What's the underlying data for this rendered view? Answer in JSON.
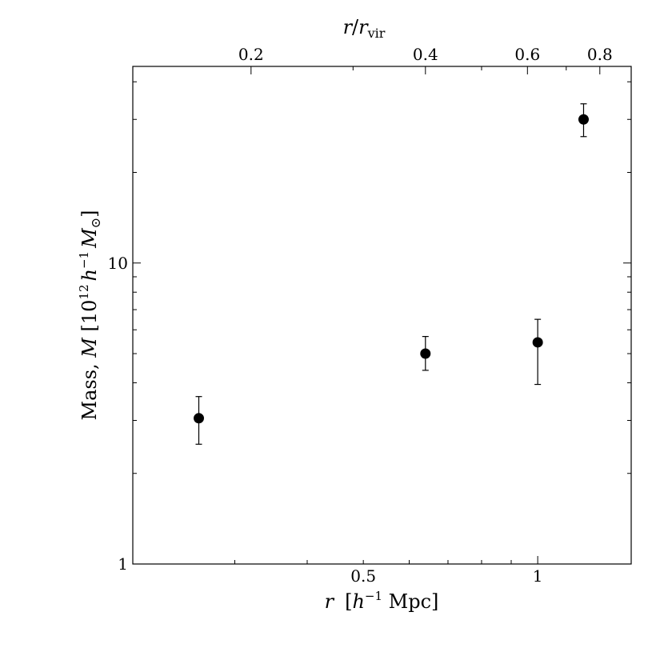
{
  "chart_data": {
    "type": "scatter",
    "xscale": "log",
    "yscale": "log",
    "xlim": [
      0.2,
      1.45
    ],
    "ylim": [
      1,
      45
    ],
    "grid": false,
    "xlabel": {
      "italic": "r",
      "unit_open": "[",
      "unit_h": "h",
      "unit_exp": "−1",
      "unit_rest": " Mpc]"
    },
    "ylabel": {
      "prefix": "Mass, ",
      "italic": "M",
      "bracket_open": " [10",
      "exp12": "12",
      "h": "h",
      "exp_minus1": "−1",
      "M": "M",
      "sun": "⊙",
      "bracket_close": "]"
    },
    "top_xlabel": {
      "r": "r",
      "slash": "/",
      "r2": "r",
      "sub": "vir"
    },
    "x_ticks": [
      {
        "value": 0.5,
        "label": "0.5"
      },
      {
        "value": 1,
        "label": "1"
      }
    ],
    "y_ticks": [
      {
        "value": 1,
        "label": "1"
      },
      {
        "value": 10,
        "label": "10"
      }
    ],
    "top_ticks": [
      {
        "value": 0.2,
        "label": "0.2"
      },
      {
        "value": 0.4,
        "label": "0.4"
      },
      {
        "value": 0.6,
        "label": "0.6"
      },
      {
        "value": 0.8,
        "label": "0.8"
      }
    ],
    "r_vir": 1.6,
    "points": [
      {
        "x": 0.26,
        "y": 3.05,
        "y_low": 2.5,
        "y_high": 3.6
      },
      {
        "x": 0.64,
        "y": 5.0,
        "y_low": 4.4,
        "y_high": 5.7
      },
      {
        "x": 1.0,
        "y": 5.45,
        "y_low": 3.95,
        "y_high": 6.5
      },
      {
        "x": 1.2,
        "y": 30.0,
        "y_low": 26.3,
        "y_high": 33.8
      }
    ]
  }
}
